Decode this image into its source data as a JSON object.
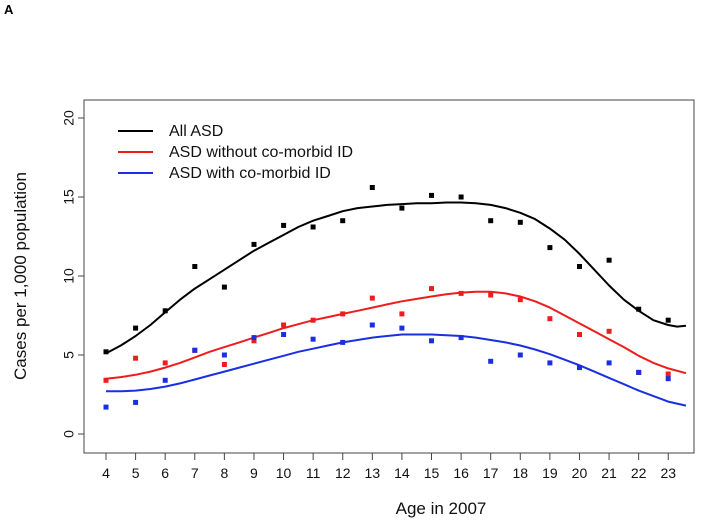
{
  "panel_label": "A",
  "chart_data": {
    "type": "scatter",
    "xlabel": "Age in 2007",
    "ylabel": "Cases per 1,000 population",
    "x": [
      4,
      5,
      6,
      7,
      8,
      9,
      10,
      11,
      12,
      13,
      14,
      15,
      16,
      17,
      18,
      19,
      20,
      21,
      22,
      23
    ],
    "xlim": [
      4,
      23.6
    ],
    "ylim": [
      0,
      20
    ],
    "yticks": [
      0,
      5,
      10,
      15,
      20
    ],
    "grid": false,
    "legend_position": "top-left",
    "series": [
      {
        "name": "All ASD",
        "color": "#000000",
        "points": [
          5.2,
          6.7,
          7.8,
          10.6,
          9.3,
          12.0,
          13.2,
          13.1,
          13.5,
          15.6,
          14.3,
          15.1,
          15.0,
          13.5,
          13.4,
          11.8,
          10.6,
          11.0,
          7.9,
          7.2
        ],
        "fit_x": [
          4,
          4.5,
          5,
          5.5,
          6,
          6.5,
          7,
          7.5,
          8,
          8.5,
          9,
          9.5,
          10,
          10.5,
          11,
          11.5,
          12,
          12.5,
          13,
          13.5,
          14,
          14.5,
          15,
          15.5,
          16,
          16.5,
          17,
          17.5,
          18,
          18.5,
          19,
          19.5,
          20,
          20.5,
          21,
          21.5,
          22,
          22.5,
          23,
          23.3,
          23.6
        ],
        "fit_y": [
          5.1,
          5.6,
          6.2,
          6.9,
          7.7,
          8.5,
          9.2,
          9.8,
          10.4,
          11.0,
          11.6,
          12.1,
          12.6,
          13.1,
          13.5,
          13.8,
          14.1,
          14.3,
          14.4,
          14.5,
          14.55,
          14.6,
          14.6,
          14.65,
          14.65,
          14.6,
          14.5,
          14.3,
          14.0,
          13.6,
          13.0,
          12.3,
          11.4,
          10.4,
          9.4,
          8.5,
          7.8,
          7.2,
          6.9,
          6.8,
          6.85
        ]
      },
      {
        "name": "ASD without co-morbid ID",
        "color": "#ee1c1c",
        "points": [
          3.4,
          4.8,
          4.5,
          5.3,
          4.4,
          5.9,
          6.9,
          7.2,
          7.6,
          8.6,
          7.6,
          9.2,
          8.9,
          8.8,
          8.5,
          7.3,
          6.3,
          6.5,
          3.9,
          3.8
        ],
        "fit_x": [
          4,
          4.5,
          5,
          5.5,
          6,
          6.5,
          7,
          7.5,
          8,
          8.5,
          9,
          9.5,
          10,
          10.5,
          11,
          11.5,
          12,
          12.5,
          13,
          13.5,
          14,
          14.5,
          15,
          15.5,
          16,
          16.5,
          17,
          17.5,
          18,
          18.5,
          19,
          19.5,
          20,
          20.5,
          21,
          21.5,
          22,
          22.5,
          23,
          23.6
        ],
        "fit_y": [
          3.5,
          3.6,
          3.75,
          3.95,
          4.2,
          4.5,
          4.85,
          5.2,
          5.5,
          5.8,
          6.1,
          6.4,
          6.7,
          6.95,
          7.2,
          7.4,
          7.6,
          7.8,
          8.0,
          8.2,
          8.4,
          8.55,
          8.7,
          8.85,
          8.95,
          9.0,
          9.0,
          8.9,
          8.7,
          8.4,
          8.0,
          7.5,
          7.0,
          6.5,
          6.0,
          5.5,
          4.95,
          4.5,
          4.15,
          3.85
        ]
      },
      {
        "name": "ASD with co-morbid ID",
        "color": "#1a2fe0",
        "points": [
          1.7,
          2.0,
          3.4,
          5.3,
          5.0,
          6.1,
          6.3,
          6.0,
          5.8,
          6.9,
          6.7,
          5.9,
          6.1,
          4.6,
          5.0,
          4.5,
          4.2,
          4.5,
          3.9,
          3.5
        ],
        "fit_x": [
          4,
          4.5,
          5,
          5.5,
          6,
          6.5,
          7,
          7.5,
          8,
          8.5,
          9,
          9.5,
          10,
          10.5,
          11,
          11.5,
          12,
          12.5,
          13,
          13.5,
          14,
          14.5,
          15,
          15.5,
          16,
          16.5,
          17,
          17.5,
          18,
          18.5,
          19,
          19.5,
          20,
          20.5,
          21,
          21.5,
          22,
          22.5,
          23,
          23.6
        ],
        "fit_y": [
          2.7,
          2.7,
          2.75,
          2.85,
          3.0,
          3.2,
          3.45,
          3.7,
          3.95,
          4.2,
          4.45,
          4.7,
          4.95,
          5.2,
          5.4,
          5.6,
          5.8,
          5.95,
          6.1,
          6.2,
          6.3,
          6.3,
          6.3,
          6.25,
          6.2,
          6.1,
          5.95,
          5.8,
          5.6,
          5.35,
          5.05,
          4.7,
          4.35,
          3.95,
          3.55,
          3.15,
          2.75,
          2.4,
          2.05,
          1.8
        ]
      }
    ]
  }
}
